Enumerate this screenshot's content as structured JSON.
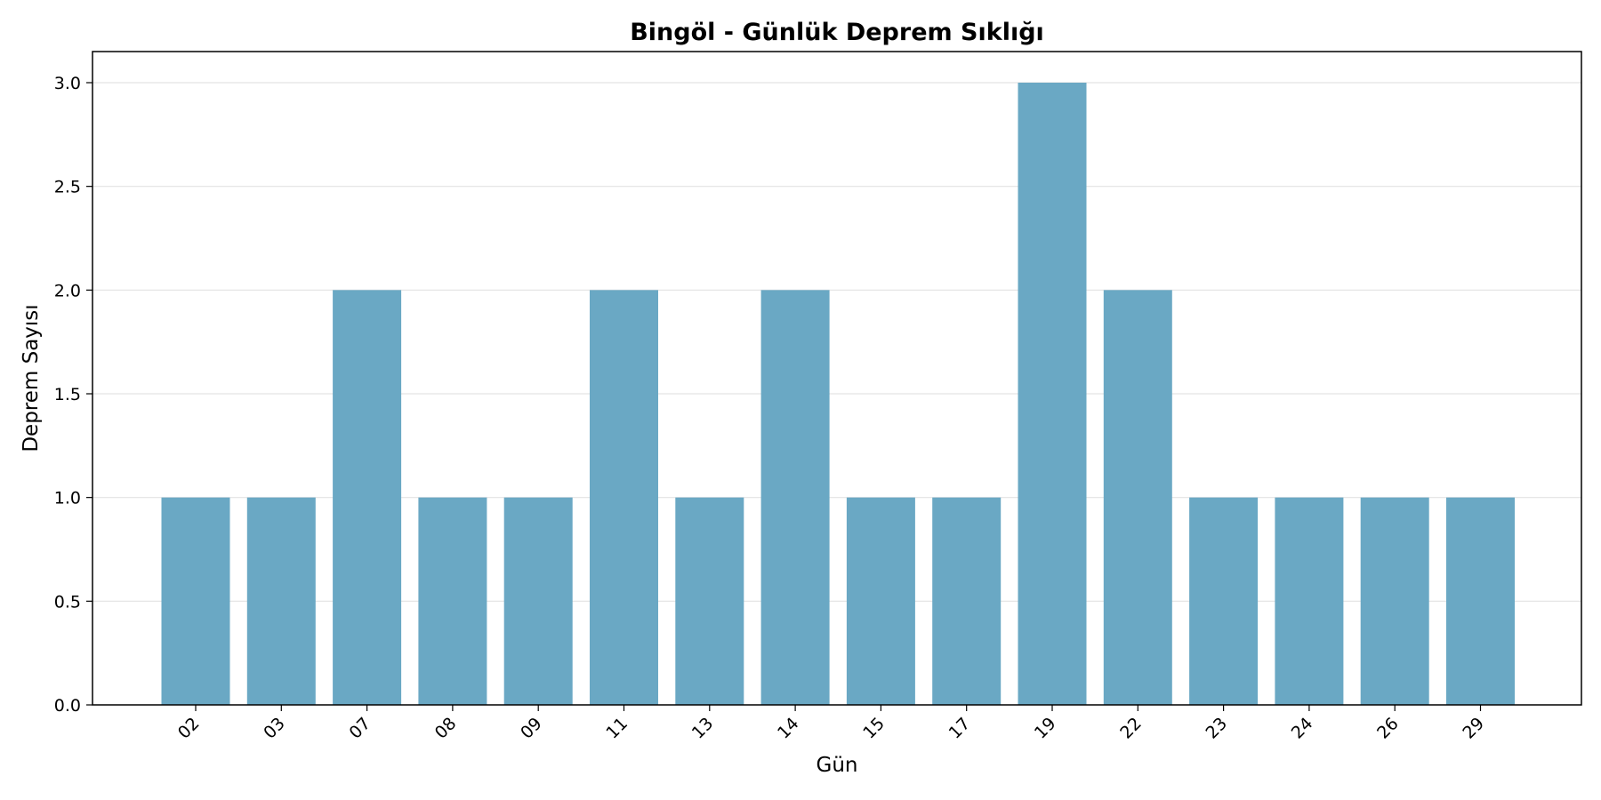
{
  "chart_data": {
    "type": "bar",
    "title": "Bingöl - Günlük Deprem Sıklığı",
    "xlabel": "Gün",
    "ylabel": "Deprem Sayısı",
    "categories": [
      "02",
      "03",
      "07",
      "08",
      "09",
      "11",
      "13",
      "14",
      "15",
      "17",
      "19",
      "22",
      "23",
      "24",
      "26",
      "29"
    ],
    "values": [
      1,
      1,
      2,
      1,
      1,
      2,
      1,
      2,
      1,
      1,
      3,
      2,
      1,
      1,
      1,
      1
    ],
    "ylim": [
      0,
      3.15
    ],
    "yticks": [
      0.0,
      0.5,
      1.0,
      1.5,
      2.0,
      2.5,
      3.0
    ],
    "ytick_labels": [
      "0.0",
      "0.5",
      "1.0",
      "1.5",
      "2.0",
      "2.5",
      "3.0"
    ],
    "grid": "y",
    "legend": "none",
    "bar_color": "#6aa8c4"
  }
}
